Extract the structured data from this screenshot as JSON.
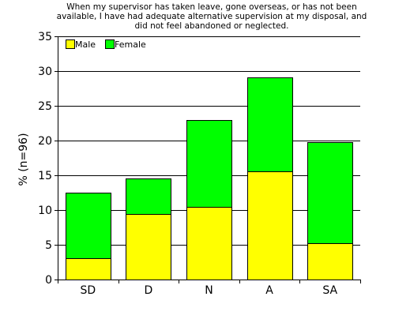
{
  "chart_data": {
    "type": "bar",
    "stacked": true,
    "title_lines": [
      "When my supervisor has taken leave, gone overseas, or has not been",
      "available, I have had adequate alternative supervision at my disposal, and",
      "did not feel abandoned or neglected."
    ],
    "xlabel": "",
    "ylabel": "% (n=96)",
    "categories": [
      "SD",
      "D",
      "N",
      "A",
      "SA"
    ],
    "series": [
      {
        "name": "Male",
        "color": "#ffff00",
        "values": [
          3.1,
          9.4,
          10.4,
          15.6,
          5.2
        ]
      },
      {
        "name": "Female",
        "color": "#00ff00",
        "values": [
          9.4,
          5.2,
          12.5,
          13.5,
          14.6
        ]
      }
    ],
    "ylim": [
      0,
      35
    ],
    "yticks": [
      0,
      5,
      10,
      15,
      20,
      25,
      30,
      35
    ],
    "grid": true,
    "legend_position": "top-left"
  }
}
